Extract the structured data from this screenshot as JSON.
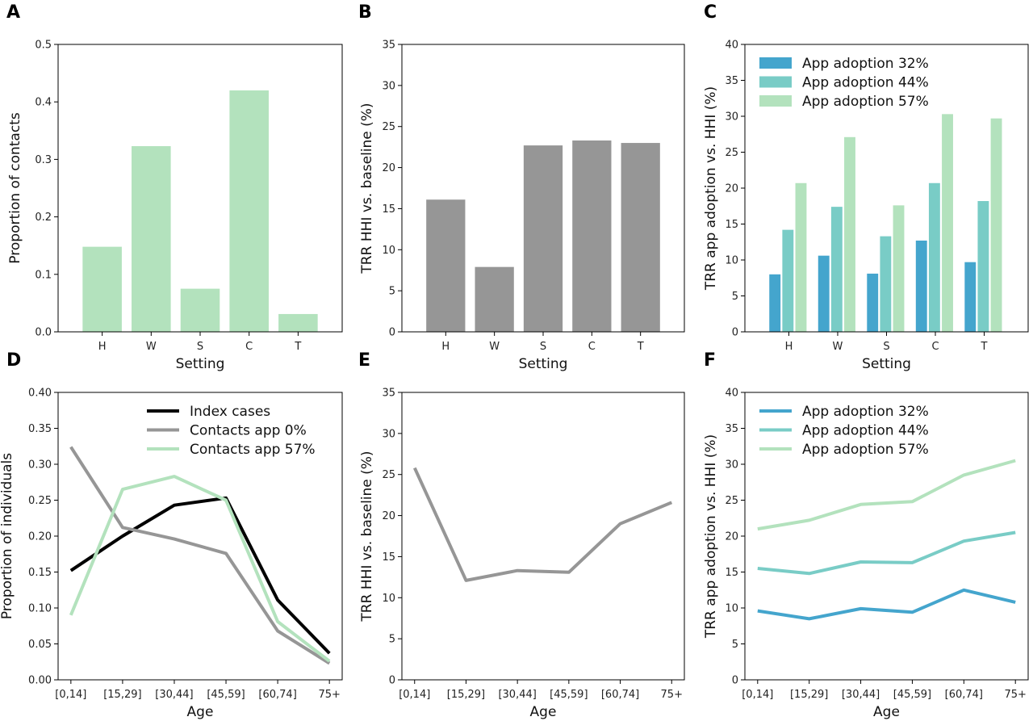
{
  "colors": {
    "light_green": "#b3e2bd",
    "gray": "#969696",
    "black": "#000000",
    "app32": "#44a5cd",
    "app44": "#79ccc6",
    "app57": "#b3e2bd"
  },
  "chart_data": [
    {
      "panel": "A",
      "type": "bar",
      "categories": [
        "H",
        "W",
        "S",
        "C",
        "T"
      ],
      "values": [
        0.148,
        0.323,
        0.075,
        0.42,
        0.031
      ],
      "xlabel": "Setting",
      "ylabel": "Proportion of contacts",
      "ylim": [
        0,
        0.5
      ],
      "yticks": [
        "0.0",
        "0.1",
        "0.2",
        "0.3",
        "0.4",
        "0.5"
      ]
    },
    {
      "panel": "B",
      "type": "bar",
      "categories": [
        "H",
        "W",
        "S",
        "C",
        "T"
      ],
      "values": [
        16.1,
        7.9,
        22.7,
        23.3,
        23.0
      ],
      "xlabel": "Setting",
      "ylabel": "TRR HHI vs. baseline (%)",
      "ylim": [
        0,
        35
      ],
      "yticks": [
        "0",
        "5",
        "10",
        "15",
        "20",
        "25",
        "30",
        "35"
      ]
    },
    {
      "panel": "C",
      "type": "bar",
      "categories": [
        "H",
        "W",
        "S",
        "C",
        "T"
      ],
      "series": [
        {
          "name": "App adoption 32%",
          "values": [
            8.0,
            10.6,
            8.1,
            12.7,
            9.7
          ]
        },
        {
          "name": "App adoption 44%",
          "values": [
            14.2,
            17.4,
            13.3,
            20.7,
            18.2
          ]
        },
        {
          "name": "App adoption 57%",
          "values": [
            20.7,
            27.1,
            17.6,
            30.3,
            29.7
          ]
        }
      ],
      "xlabel": "Setting",
      "ylabel": "TRR app adoption vs. HHI (%)",
      "ylim": [
        0,
        40
      ],
      "yticks": [
        "0",
        "5",
        "10",
        "15",
        "20",
        "25",
        "30",
        "35",
        "40"
      ],
      "legend": "top-left"
    },
    {
      "panel": "D",
      "type": "line",
      "categories": [
        "[0,14]",
        "[15,29]",
        "[30,44]",
        "[45,59]",
        "[60,74]",
        "75+"
      ],
      "series": [
        {
          "name": "Index cases",
          "values": [
            0.152,
            0.2,
            0.243,
            0.253,
            0.111,
            0.037
          ]
        },
        {
          "name": "Contacts app 0%",
          "values": [
            0.324,
            0.212,
            0.196,
            0.176,
            0.068,
            0.023
          ]
        },
        {
          "name": "Contacts app 57%",
          "values": [
            0.09,
            0.265,
            0.283,
            0.25,
            0.081,
            0.026
          ]
        }
      ],
      "xlabel": "Age",
      "ylabel": "Proportion of individuals",
      "ylim": [
        0,
        0.4
      ],
      "yticks": [
        "0.00",
        "0.05",
        "0.10",
        "0.15",
        "0.20",
        "0.25",
        "0.30",
        "0.35",
        "0.40"
      ],
      "legend": "top-right"
    },
    {
      "panel": "E",
      "type": "line",
      "categories": [
        "[0,14]",
        "[15,29]",
        "[30,44]",
        "[45,59]",
        "[60,74]",
        "75+"
      ],
      "series": [
        {
          "values": [
            25.8,
            12.1,
            13.3,
            13.1,
            19.0,
            21.6
          ]
        }
      ],
      "xlabel": "Age",
      "ylabel": "TRR HHI vs. baseline (%)",
      "ylim": [
        0,
        35
      ],
      "yticks": [
        "0",
        "5",
        "10",
        "15",
        "20",
        "25",
        "30",
        "35"
      ]
    },
    {
      "panel": "F",
      "type": "line",
      "categories": [
        "[0,14]",
        "[15,29]",
        "[30,44]",
        "[45,59]",
        "[60,74]",
        "75+"
      ],
      "series": [
        {
          "name": "App adoption 32%",
          "values": [
            9.6,
            8.5,
            9.9,
            9.4,
            12.5,
            10.8
          ]
        },
        {
          "name": "App adoption 44%",
          "values": [
            15.5,
            14.8,
            16.4,
            16.3,
            19.3,
            20.5
          ]
        },
        {
          "name": "App adoption 57%",
          "values": [
            21.0,
            22.2,
            24.4,
            24.8,
            28.5,
            30.5
          ]
        }
      ],
      "xlabel": "Age",
      "ylabel": "TRR app adoption vs. HHI (%)",
      "ylim": [
        0,
        40
      ],
      "yticks": [
        "0",
        "5",
        "10",
        "15",
        "20",
        "25",
        "30",
        "35",
        "40"
      ],
      "legend": "top-left"
    }
  ]
}
